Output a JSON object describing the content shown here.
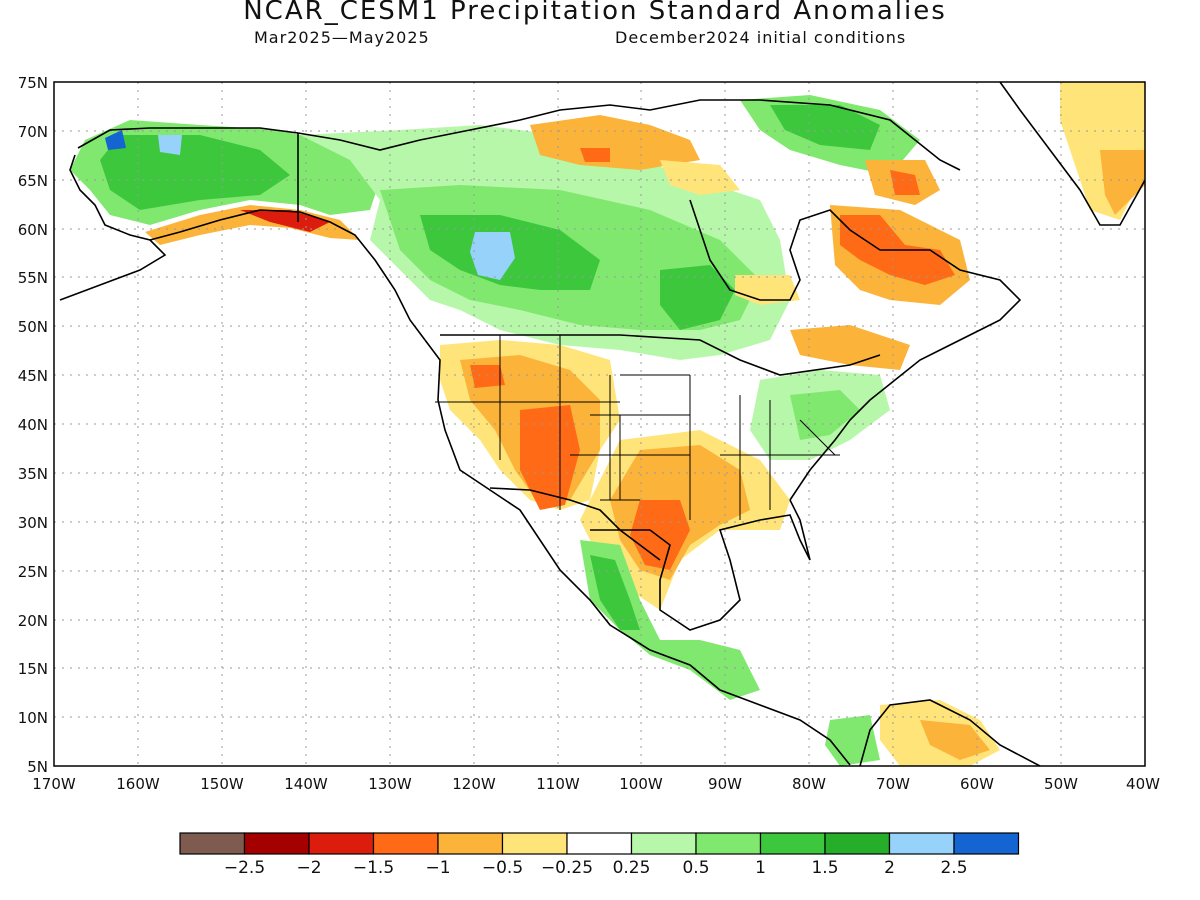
{
  "title": "NCAR_CESM1 Precipitation Standard Anomalies",
  "period": "Mar2025—May2025",
  "init": "December2024 initial conditions",
  "lat_labels": [
    "75N",
    "70N",
    "65N",
    "60N",
    "55N",
    "50N",
    "45N",
    "40N",
    "35N",
    "30N",
    "25N",
    "20N",
    "15N",
    "10N",
    "5N"
  ],
  "lon_labels": [
    "170W",
    "160W",
    "150W",
    "140W",
    "130W",
    "120W",
    "110W",
    "100W",
    "90W",
    "80W",
    "70W",
    "60W",
    "50W",
    "40W"
  ],
  "colorbar": {
    "colors": [
      "#7f5a4e",
      "#a50000",
      "#dc1d0e",
      "#ff6a17",
      "#fbb33a",
      "#ffe47a",
      "#ffffff",
      "#b7f7a9",
      "#80e86f",
      "#3dc73d",
      "#26ad29",
      "#96d2fa",
      "#1464d2"
    ],
    "labels": [
      "−2.5",
      "−2",
      "−1.5",
      "−1",
      "−0.5",
      "−0.25",
      "0.25",
      "0.5",
      "1",
      "1.5",
      "2",
      "2.5"
    ]
  }
}
